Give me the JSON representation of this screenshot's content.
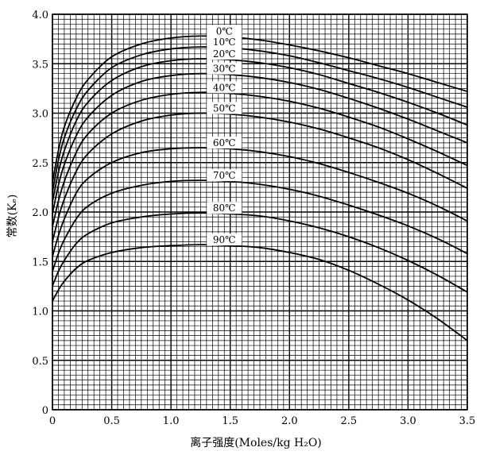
{
  "chart_data": {
    "type": "line",
    "title": "",
    "xlabel": "离子强度(Moles/kg H₂O)",
    "ylabel": "常数(Kₑ)",
    "xlim": [
      0,
      3.5
    ],
    "ylim": [
      0,
      4.0
    ],
    "xticks": [
      "0",
      "0.5",
      "1.0",
      "1.5",
      "2.0",
      "2.5",
      "3.0",
      "3.5"
    ],
    "yticks": [
      "0",
      "0.5",
      "1.0",
      "1.5",
      "2.0",
      "2.5",
      "3.0",
      "3.5",
      "4.0"
    ],
    "grid": true,
    "x": [
      0,
      0.05,
      0.1,
      0.2,
      0.3,
      0.5,
      0.75,
      1.0,
      1.25,
      1.5,
      1.75,
      2.0,
      2.25,
      2.5,
      2.75,
      3.0,
      3.25,
      3.5
    ],
    "series": [
      {
        "name": "0℃",
        "values": [
          2.3,
          2.62,
          2.86,
          3.15,
          3.34,
          3.57,
          3.7,
          3.76,
          3.78,
          3.77,
          3.74,
          3.69,
          3.63,
          3.56,
          3.48,
          3.4,
          3.31,
          3.22
        ]
      },
      {
        "name": "10℃",
        "values": [
          2.2,
          2.52,
          2.75,
          3.04,
          3.23,
          3.46,
          3.59,
          3.65,
          3.67,
          3.66,
          3.63,
          3.58,
          3.51,
          3.43,
          3.35,
          3.26,
          3.16,
          3.06
        ]
      },
      {
        "name": "20℃",
        "values": [
          2.1,
          2.4,
          2.62,
          2.92,
          3.11,
          3.33,
          3.47,
          3.53,
          3.55,
          3.54,
          3.51,
          3.46,
          3.39,
          3.3,
          3.21,
          3.11,
          3.0,
          2.88
        ]
      },
      {
        "name": "30℃",
        "values": [
          1.98,
          2.27,
          2.48,
          2.77,
          2.96,
          3.18,
          3.32,
          3.38,
          3.4,
          3.39,
          3.36,
          3.31,
          3.24,
          3.15,
          3.05,
          2.94,
          2.82,
          2.7
        ]
      },
      {
        "name": "40℃",
        "values": [
          1.85,
          2.11,
          2.31,
          2.6,
          2.79,
          3.0,
          3.13,
          3.19,
          3.21,
          3.2,
          3.17,
          3.12,
          3.05,
          2.96,
          2.86,
          2.74,
          2.61,
          2.47
        ]
      },
      {
        "name": "50℃",
        "values": [
          1.7,
          1.94,
          2.13,
          2.41,
          2.59,
          2.79,
          2.92,
          2.98,
          3.0,
          2.99,
          2.96,
          2.91,
          2.84,
          2.75,
          2.65,
          2.53,
          2.39,
          2.24
        ]
      },
      {
        "name": "60℃",
        "values": [
          1.55,
          1.76,
          1.93,
          2.19,
          2.34,
          2.5,
          2.6,
          2.64,
          2.65,
          2.64,
          2.61,
          2.56,
          2.49,
          2.4,
          2.3,
          2.19,
          2.06,
          1.91
        ]
      },
      {
        "name": "70℃",
        "values": [
          1.4,
          1.58,
          1.72,
          1.93,
          2.06,
          2.19,
          2.27,
          2.31,
          2.32,
          2.31,
          2.28,
          2.23,
          2.16,
          2.07,
          1.97,
          1.86,
          1.73,
          1.58
        ]
      },
      {
        "name": "80℃",
        "values": [
          1.25,
          1.4,
          1.51,
          1.68,
          1.78,
          1.89,
          1.95,
          1.98,
          1.99,
          1.98,
          1.96,
          1.91,
          1.84,
          1.75,
          1.64,
          1.51,
          1.36,
          1.19
        ]
      },
      {
        "name": "90℃",
        "values": [
          1.1,
          1.21,
          1.3,
          1.43,
          1.51,
          1.59,
          1.64,
          1.66,
          1.67,
          1.66,
          1.64,
          1.59,
          1.52,
          1.41,
          1.27,
          1.11,
          0.92,
          0.7
        ]
      }
    ],
    "series_labels_shown": [
      "0℃",
      "10℃",
      "20℃",
      "30℃",
      "40℃",
      "50℃",
      "60℃",
      "70℃",
      "80℃",
      "90℃"
    ]
  }
}
